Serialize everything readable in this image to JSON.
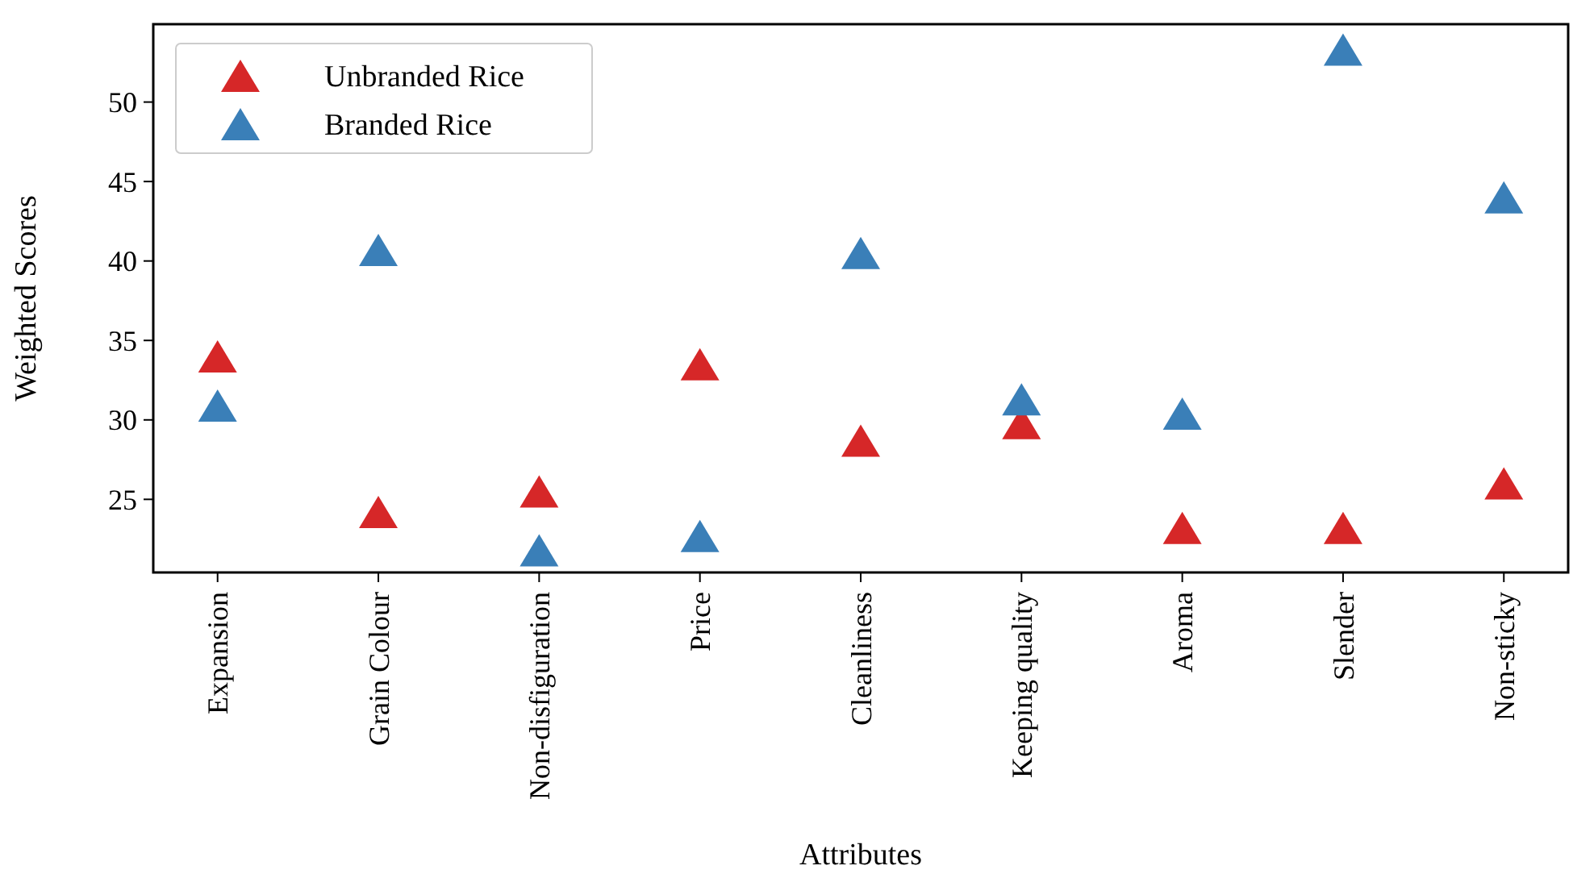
{
  "chart_data": {
    "type": "scatter",
    "xlabel": "Attributes",
    "ylabel": "Weighted Scores",
    "categories": [
      "Expansion",
      "Grain Colour",
      "Non-disfiguration",
      "Price",
      "Cleanliness",
      "Keeping quality",
      "Aroma",
      "Slender",
      "Non-sticky"
    ],
    "series": [
      {
        "name": "Unbranded Rice",
        "color": "#d62728",
        "values": [
          34.0,
          24.2,
          25.5,
          33.5,
          28.7,
          29.8,
          23.2,
          23.2,
          26.0
        ]
      },
      {
        "name": "Branded Rice",
        "color": "#3a7fb8",
        "values": [
          30.9,
          40.7,
          21.8,
          22.7,
          40.5,
          31.3,
          30.4,
          53.3,
          44.0
        ]
      }
    ],
    "ylim": [
      20.4,
      54.9
    ],
    "yticks": [
      25,
      30,
      35,
      40,
      45,
      50
    ],
    "legend": "top left",
    "marker": "triangle",
    "grid": false
  }
}
